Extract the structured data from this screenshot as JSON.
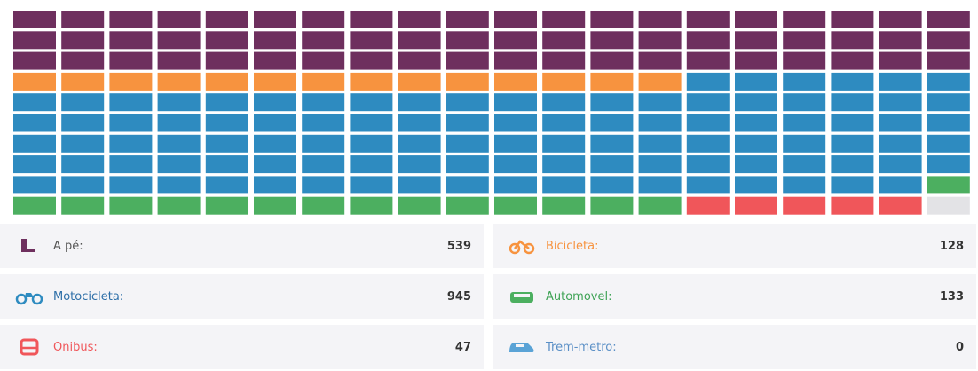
{
  "chart_data": {
    "type": "waffle",
    "series": [
      {
        "name": "A pé:",
        "color": "#6e2f5e",
        "label_color": "#555555",
        "values": [
          539
        ]
      },
      {
        "name": "Bicicleta:",
        "color": "#f7933f",
        "label_color": "#f7933f",
        "values": [
          128
        ]
      },
      {
        "name": "Motocicleta:",
        "color": "#2e8bc0",
        "label_color": "#2e6fa8",
        "values": [
          945
        ]
      },
      {
        "name": "Automovel:",
        "color": "#4caf60",
        "label_color": "#3fa356",
        "values": [
          133
        ]
      },
      {
        "name": "Onibus:",
        "color": "#f0565a",
        "label_color": "#f0565a",
        "values": [
          47
        ]
      },
      {
        "name": "Trem-metro:",
        "color": "#5aa3d6",
        "label_color": "#5a8fc6",
        "values": [
          0
        ]
      }
    ]
  }
}
